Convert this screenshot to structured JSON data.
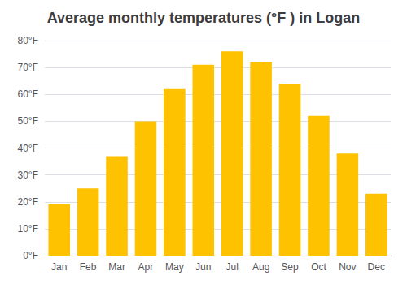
{
  "chart_data": {
    "type": "bar",
    "title": "Average monthly temperatures (°F ) in Logan",
    "categories": [
      "Jan",
      "Feb",
      "Mar",
      "Apr",
      "May",
      "Jun",
      "Jul",
      "Aug",
      "Sep",
      "Oct",
      "Nov",
      "Dec"
    ],
    "values": [
      19,
      25,
      37,
      50,
      62,
      71,
      76,
      72,
      64,
      52,
      38,
      23
    ],
    "color": "#FFC200",
    "ylim": [
      0,
      80
    ],
    "yticks": [
      {
        "value": 0,
        "label": "0°F"
      },
      {
        "value": 10,
        "label": "10°F"
      },
      {
        "value": 20,
        "label": "20°F"
      },
      {
        "value": 30,
        "label": "30°F"
      },
      {
        "value": 40,
        "label": "40°F"
      },
      {
        "value": 50,
        "label": "50°F"
      },
      {
        "value": 60,
        "label": "60°F"
      },
      {
        "value": 70,
        "label": "70°F"
      },
      {
        "value": 80,
        "label": "80°F"
      }
    ],
    "grid": true
  }
}
